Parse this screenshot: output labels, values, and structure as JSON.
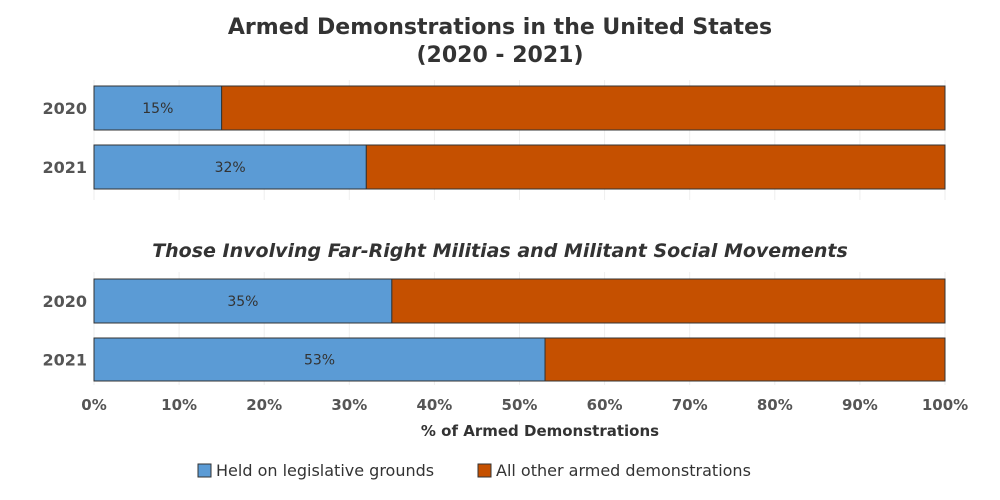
{
  "chart_data": {
    "type": "bar",
    "orientation": "horizontal",
    "stacked": true,
    "title_line1": "Armed Demonstrations in the United States",
    "title_line2": "(2020 - 2021)",
    "xlabel": "% of Armed Demonstrations",
    "xlim": [
      0,
      100
    ],
    "x_ticks": [
      "0%",
      "10%",
      "20%",
      "30%",
      "40%",
      "50%",
      "60%",
      "70%",
      "80%",
      "90%",
      "100%"
    ],
    "legend_position": "bottom",
    "series": [
      {
        "name": "Held on legislative grounds",
        "color": "#5b9bd5"
      },
      {
        "name": "All other armed demonstrations",
        "color": "#c55000"
      }
    ],
    "panels": [
      {
        "subtitle": "",
        "categories": [
          "2020",
          "2021"
        ],
        "values": [
          15,
          32
        ],
        "data_labels": [
          "15%",
          "32%"
        ]
      },
      {
        "subtitle": "Those Involving Far-Right Militias and Militant Social Movements",
        "categories": [
          "2020",
          "2021"
        ],
        "values": [
          35,
          53
        ],
        "data_labels": [
          "35%",
          "53%"
        ]
      }
    ]
  }
}
